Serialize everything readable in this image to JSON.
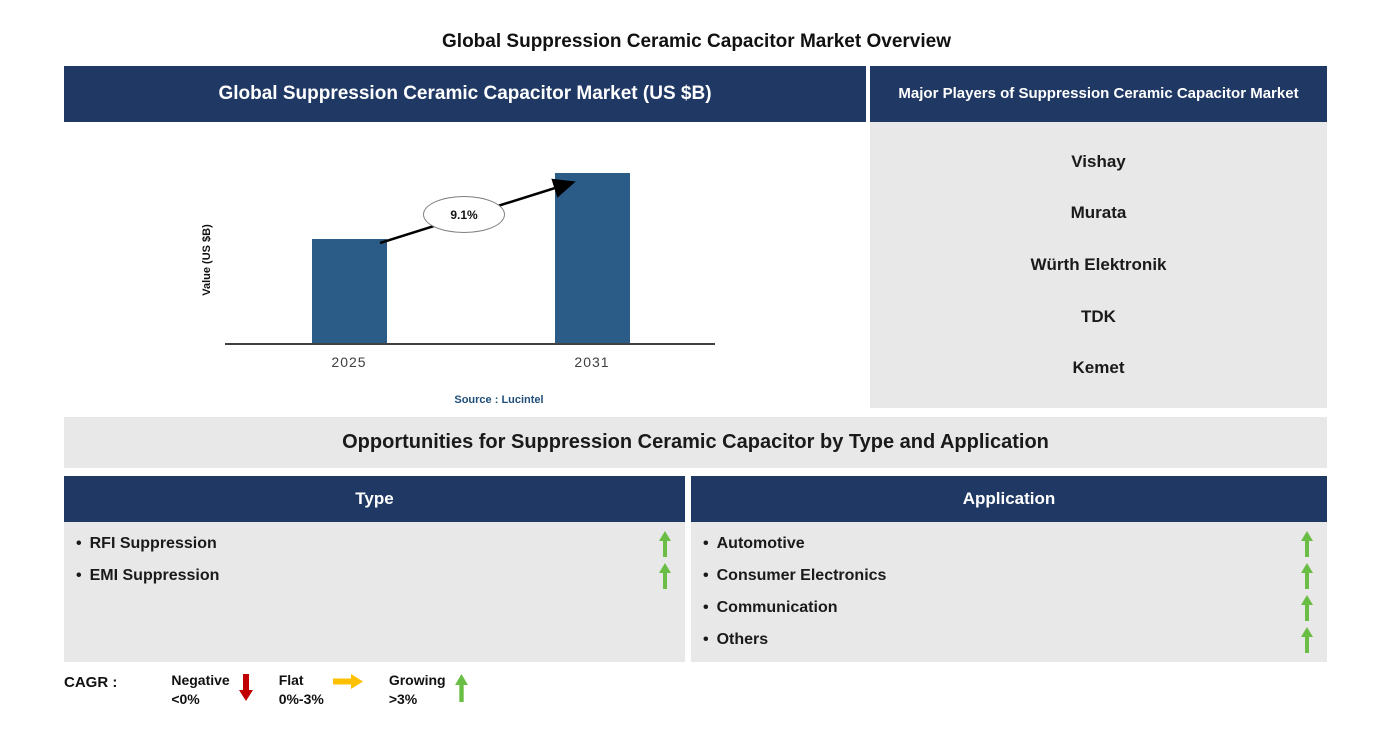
{
  "page": {
    "title": "Global Suppression Ceramic Capacitor Market Overview"
  },
  "chart_data": {
    "type": "bar",
    "title": "Global Suppression Ceramic Capacitor Market (US $B)",
    "categories": [
      "2025",
      "2031"
    ],
    "values": [
      0.61,
      1.0
    ],
    "values_are_relative": true,
    "ylabel": "Value (US $B)",
    "xlabel": "",
    "annotation": "9.1%",
    "source": "Source : Lucintel",
    "bar_color": "#2B5C87",
    "grid": false,
    "legend_position": "none"
  },
  "major_players": {
    "header": "Major Players of Suppression Ceramic Capacitor Market",
    "players": [
      "Vishay",
      "Murata",
      "Würth Elektronik",
      "TDK",
      "Kemet"
    ]
  },
  "opportunities": {
    "title": "Opportunities for Suppression Ceramic Capacitor by Type and Application",
    "type": {
      "header": "Type",
      "items": [
        {
          "label": "RFI Suppression",
          "trend": "growing"
        },
        {
          "label": "EMI Suppression",
          "trend": "growing"
        }
      ]
    },
    "application": {
      "header": "Application",
      "items": [
        {
          "label": "Automotive",
          "trend": "growing"
        },
        {
          "label": "Consumer Electronics",
          "trend": "growing"
        },
        {
          "label": "Communication",
          "trend": "growing"
        },
        {
          "label": "Others",
          "trend": "growing"
        }
      ]
    }
  },
  "legend": {
    "label": "CAGR :",
    "items": [
      {
        "label": "Negative",
        "range": "<0%",
        "trend": "negative",
        "color": "#C00000"
      },
      {
        "label": "Flat",
        "range": "0%-3%",
        "trend": "flat",
        "color": "#FFC000"
      },
      {
        "label": "Growing",
        "range": ">3%",
        "trend": "growing",
        "color": "#6BBE45"
      }
    ]
  },
  "colors": {
    "header_navy": "#1F3864",
    "panel_gray": "#E8E8E8",
    "bar_blue": "#2B5C87",
    "growing_green": "#6BBE45",
    "negative_red": "#C00000",
    "flat_orange": "#FFC000",
    "source_blue": "#1F4E79"
  }
}
